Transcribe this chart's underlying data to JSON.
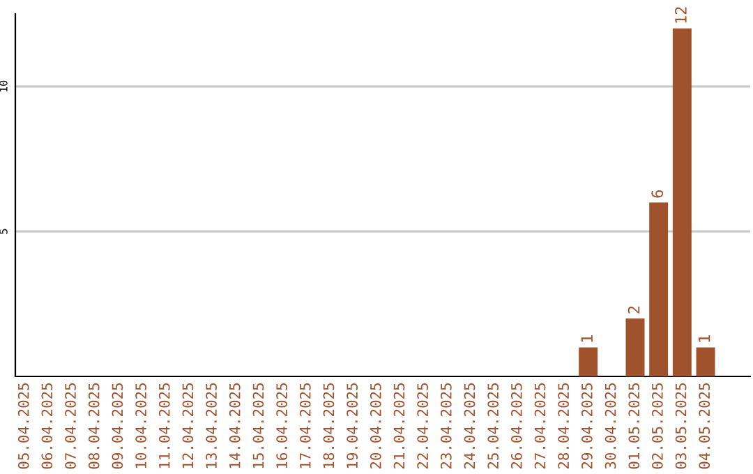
{
  "chart_data": {
    "type": "bar",
    "categories": [
      "05.04.2025",
      "06.04.2025",
      "07.04.2025",
      "08.04.2025",
      "09.04.2025",
      "10.04.2025",
      "11.04.2025",
      "12.04.2025",
      "13.04.2025",
      "14.04.2025",
      "15.04.2025",
      "16.04.2025",
      "17.04.2025",
      "18.04.2025",
      "19.04.2025",
      "20.04.2025",
      "21.04.2025",
      "22.04.2025",
      "23.04.2025",
      "24.04.2025",
      "25.04.2025",
      "26.04.2025",
      "27.04.2025",
      "28.04.2025",
      "29.04.2025",
      "30.04.2025",
      "01.05.2025",
      "02.05.2025",
      "03.05.2025",
      "04.05.2025"
    ],
    "values": [
      0,
      0,
      0,
      0,
      0,
      0,
      0,
      0,
      0,
      0,
      0,
      0,
      0,
      0,
      0,
      0,
      0,
      0,
      0,
      0,
      0,
      0,
      0,
      0,
      1,
      0,
      2,
      6,
      12,
      1
    ],
    "value_labels": [
      null,
      null,
      null,
      null,
      null,
      null,
      null,
      null,
      null,
      null,
      null,
      null,
      null,
      null,
      null,
      null,
      null,
      null,
      null,
      null,
      null,
      null,
      null,
      null,
      "1",
      null,
      "2",
      "6",
      "12",
      "1"
    ],
    "color": "#a0522d",
    "ylim": [
      0,
      12.5
    ],
    "yticks": [
      5,
      10
    ],
    "grid": "y"
  }
}
